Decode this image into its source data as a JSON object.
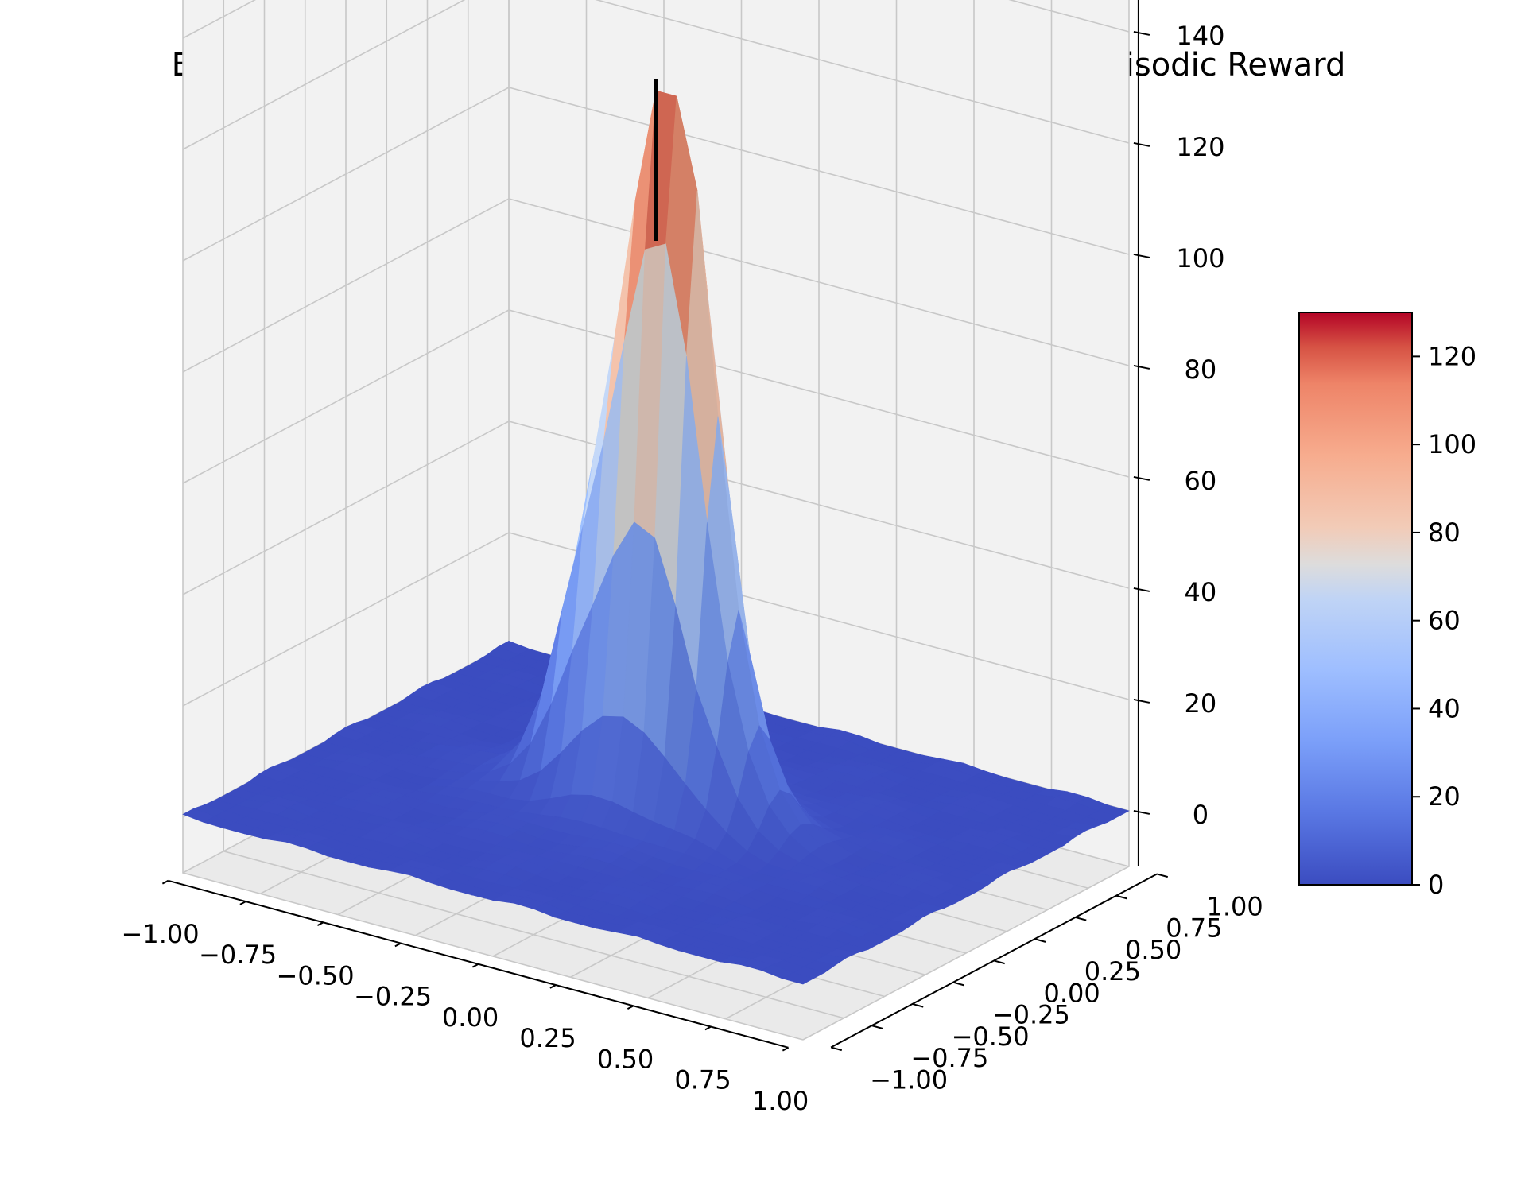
{
  "chart_data": {
    "type": "surface3d",
    "title": "BreakoutNoFrameskip-v0 | Atari | Human Optimal | Mean Episodic Reward",
    "x_range": [
      -1.0,
      1.0
    ],
    "y_range": [
      -1.0,
      1.0
    ],
    "z_range": [
      -10,
      150
    ],
    "x_ticks": [
      "−1.00",
      "−0.75",
      "−0.50",
      "−0.25",
      "0.00",
      "0.25",
      "0.50",
      "0.75",
      "1.00"
    ],
    "y_ticks": [
      "−1.00",
      "−0.75",
      "−0.50",
      "−0.25",
      "0.00",
      "0.25",
      "0.50",
      "0.75",
      "1.00"
    ],
    "z_ticks": [
      "0",
      "20",
      "40",
      "60",
      "80",
      "100",
      "120",
      "140"
    ],
    "colormap": "coolwarm",
    "colorbar": {
      "min": 0,
      "max": 130,
      "ticks": [
        "0",
        "20",
        "40",
        "60",
        "80",
        "100",
        "120"
      ]
    },
    "surface": {
      "shape": "single central peak",
      "peak_location": [
        0.0,
        0.0
      ],
      "peak_value": 130,
      "baseline_value": 0
    },
    "optimum_marker": {
      "x": 0.0,
      "y": 0.0,
      "z_bottom": 103,
      "z_top": 132,
      "color": "#000000"
    },
    "colors": {
      "pane": "#f2f2f2",
      "grid": "#c8c8c8",
      "low": "#3b4cc0",
      "mid": "#dddddd",
      "high": "#b40426"
    }
  }
}
